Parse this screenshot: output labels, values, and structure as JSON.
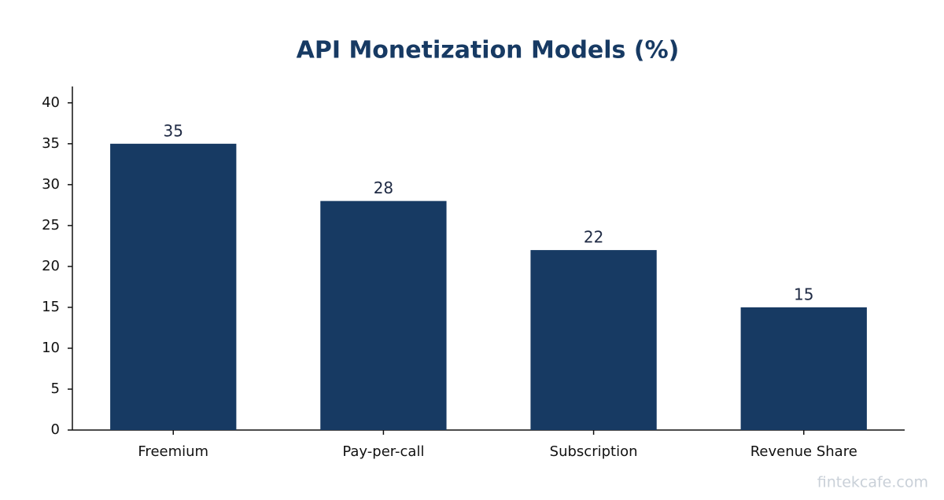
{
  "chart_data": {
    "type": "bar",
    "title": "API Monetization Models (%)",
    "categories": [
      "Freemium",
      "Pay-per-call",
      "Subscription",
      "Revenue Share"
    ],
    "values": [
      35,
      28,
      22,
      15
    ],
    "color": "#173a63",
    "ylim": [
      0,
      42
    ],
    "yticks": [
      0,
      5,
      10,
      15,
      20,
      25,
      30,
      35,
      40
    ],
    "grid": false,
    "watermark": "fintekcafe.com"
  }
}
